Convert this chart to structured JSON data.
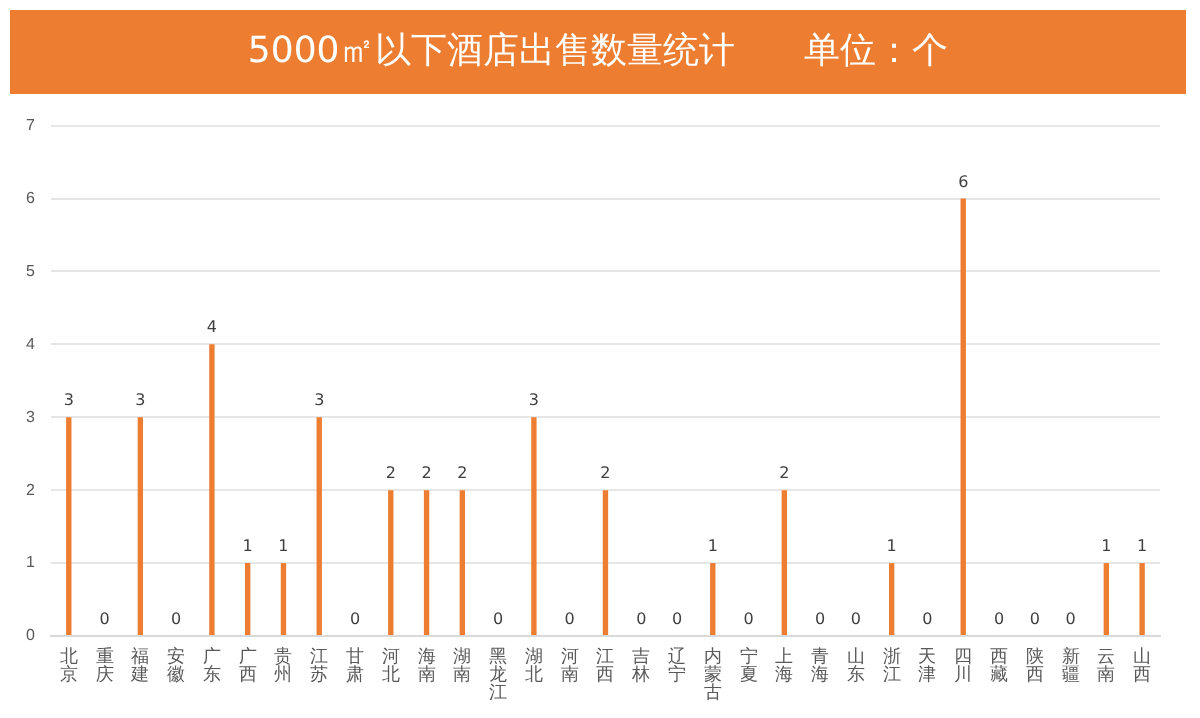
{
  "chart_data": {
    "type": "bar",
    "title": "5000㎡以下酒店出售数量统计",
    "subtitle": "单位：个",
    "categories": [
      "北京",
      "重庆",
      "福建",
      "安徽",
      "广东",
      "广西",
      "贵州",
      "江苏",
      "甘肃",
      "河北",
      "海南",
      "湖南",
      "黑龙江",
      "湖北",
      "河南",
      "江西",
      "吉林",
      "辽宁",
      "内蒙古",
      "宁夏",
      "上海",
      "青海",
      "山东",
      "浙江",
      "天津",
      "四川",
      "西藏",
      "陕西",
      "新疆",
      "云南",
      "山西"
    ],
    "values": [
      3,
      0,
      3,
      0,
      4,
      1,
      1,
      3,
      0,
      2,
      2,
      2,
      0,
      3,
      0,
      2,
      0,
      0,
      1,
      0,
      2,
      0,
      0,
      1,
      0,
      6,
      0,
      0,
      0,
      1,
      1
    ],
    "color": "#ed7d31",
    "ylim": [
      0,
      7
    ],
    "yticks": [
      0,
      1,
      2,
      3,
      4,
      5,
      6,
      7
    ],
    "grid": "y",
    "data_labels": true,
    "legend": false
  }
}
